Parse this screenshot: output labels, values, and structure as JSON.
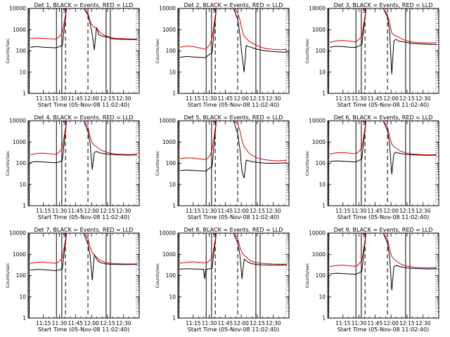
{
  "shared": {
    "type": "line",
    "ylabel": "Counts/sec",
    "xlabel": "Start Time (05-Nov-08 11:02:40)",
    "x_ticks": [
      "11:15",
      "11:30",
      "11:45",
      "12:00",
      "12:15",
      "12:30"
    ],
    "x_tick_minutes": [
      12.33,
      27.33,
      42.33,
      57.33,
      72.33,
      87.33
    ],
    "xlim_minutes": [
      -2,
      102
    ],
    "y_ticks": [
      "1",
      "10",
      "100",
      "1000",
      "10000"
    ],
    "y_tick_values": [
      1,
      10,
      100,
      1000,
      10000
    ],
    "ylim": [
      1,
      10000
    ],
    "y_scale": "log",
    "colors": {
      "events": "#000000",
      "lld": "#dd0000",
      "axis": "#000000"
    },
    "series_names": [
      "BLACK = Events",
      "RED = LLD"
    ],
    "solid_markers_minutes": [
      -1,
      24.5,
      29.5,
      71,
      75
    ],
    "dashed_markers_minutes": [
      33,
      54
    ],
    "annotation_letter": "S",
    "annotation_letter_minute": 30.5
  },
  "chart_data": [
    {
      "type": "line",
      "title": "Det 1, BLACK = Events, RED = LLD",
      "series": [
        {
          "name": "BLACK = Events",
          "x": [
            0,
            6,
            12,
            18,
            24,
            26,
            28,
            30,
            34,
            40,
            46,
            50,
            54,
            56,
            58,
            60,
            62,
            64,
            66,
            70,
            72,
            76,
            80,
            86,
            92,
            100
          ],
          "y": [
            150,
            160,
            150,
            145,
            140,
            150,
            165,
            175,
            10000,
            10000,
            10000,
            10000,
            5000,
            2000,
            600,
            110,
            1300,
            600,
            520,
            460,
            450,
            380,
            360,
            350,
            345,
            340
          ]
        },
        {
          "name": "RED = LLD",
          "x": [
            0,
            6,
            12,
            18,
            24,
            26,
            28,
            30,
            34,
            40,
            46,
            50,
            54,
            56,
            58,
            60,
            62,
            64,
            66,
            70,
            72,
            76,
            80,
            86,
            92,
            100
          ],
          "y": [
            380,
            400,
            390,
            370,
            360,
            420,
            520,
            700,
            10000,
            10000,
            10000,
            10000,
            6000,
            2500,
            1600,
            1300,
            1200,
            900,
            700,
            520,
            500,
            420,
            390,
            380,
            370,
            360
          ]
        }
      ]
    },
    {
      "type": "line",
      "title": "Det 2, BLACK = Events, RED = LLD",
      "series": [
        {
          "name": "BLACK = Events",
          "x": [
            0,
            6,
            12,
            18,
            24,
            26,
            28,
            30,
            34,
            40,
            46,
            50,
            54,
            56,
            58,
            60,
            62,
            64,
            66,
            70,
            72,
            76,
            80,
            86,
            92,
            100
          ],
          "y": [
            50,
            55,
            52,
            50,
            48,
            60,
            70,
            80,
            10000,
            10000,
            10000,
            10000,
            3000,
            600,
            60,
            10,
            180,
            160,
            150,
            130,
            120,
            110,
            100,
            95,
            90,
            88
          ]
        },
        {
          "name": "RED = LLD",
          "x": [
            0,
            6,
            12,
            18,
            24,
            26,
            28,
            30,
            34,
            40,
            46,
            50,
            54,
            56,
            58,
            60,
            62,
            64,
            66,
            70,
            72,
            76,
            80,
            86,
            92,
            100
          ],
          "y": [
            150,
            170,
            160,
            140,
            120,
            150,
            200,
            400,
            10000,
            10000,
            10000,
            10000,
            6000,
            3000,
            1000,
            500,
            400,
            300,
            260,
            200,
            180,
            150,
            130,
            120,
            115,
            120
          ]
        }
      ]
    },
    {
      "type": "line",
      "title": "Det 3, BLACK = Events, RED = LLD",
      "series": [
        {
          "name": "BLACK = Events",
          "x": [
            0,
            6,
            12,
            18,
            24,
            26,
            28,
            30,
            34,
            40,
            46,
            50,
            54,
            56,
            58,
            60,
            62,
            64,
            66,
            70,
            72,
            76,
            80,
            86,
            92,
            100
          ],
          "y": [
            150,
            165,
            160,
            150,
            145,
            160,
            180,
            200,
            10000,
            10000,
            10000,
            10000,
            4000,
            800,
            8,
            300,
            350,
            300,
            280,
            260,
            250,
            230,
            220,
            210,
            205,
            200
          ]
        },
        {
          "name": "RED = LLD",
          "x": [
            0,
            6,
            12,
            18,
            24,
            26,
            28,
            30,
            34,
            40,
            46,
            50,
            54,
            56,
            58,
            60,
            62,
            64,
            66,
            70,
            72,
            76,
            80,
            86,
            92,
            100
          ],
          "y": [
            250,
            300,
            310,
            290,
            270,
            300,
            380,
            500,
            10000,
            10000,
            10000,
            10000,
            5000,
            2000,
            700,
            550,
            500,
            450,
            400,
            320,
            300,
            270,
            250,
            240,
            235,
            240
          ]
        }
      ]
    },
    {
      "type": "line",
      "title": "Det 4, BLACK = Events, RED = LLD",
      "series": [
        {
          "name": "BLACK = Events",
          "x": [
            0,
            6,
            12,
            18,
            24,
            26,
            28,
            30,
            34,
            40,
            46,
            50,
            54,
            56,
            58,
            60,
            62,
            64,
            66,
            70,
            72,
            76,
            80,
            86,
            92,
            100
          ],
          "y": [
            110,
            120,
            115,
            110,
            105,
            110,
            120,
            130,
            10000,
            10000,
            10000,
            10000,
            3000,
            900,
            50,
            320,
            360,
            320,
            300,
            280,
            270,
            260,
            250,
            245,
            240,
            250
          ]
        },
        {
          "name": "RED = LLD",
          "x": [
            0,
            6,
            12,
            18,
            24,
            26,
            28,
            30,
            34,
            40,
            46,
            50,
            54,
            56,
            58,
            60,
            62,
            64,
            66,
            70,
            72,
            76,
            80,
            86,
            92,
            100
          ],
          "y": [
            250,
            290,
            300,
            280,
            260,
            300,
            380,
            500,
            10000,
            10000,
            10000,
            10000,
            5000,
            1800,
            900,
            700,
            600,
            500,
            420,
            350,
            320,
            290,
            270,
            260,
            255,
            260
          ]
        }
      ]
    },
    {
      "type": "line",
      "title": "Det 5, BLACK = Events, RED = LLD",
      "series": [
        {
          "name": "BLACK = Events",
          "x": [
            0,
            6,
            12,
            18,
            24,
            26,
            28,
            30,
            34,
            40,
            46,
            50,
            54,
            56,
            58,
            60,
            62,
            64,
            66,
            70,
            72,
            76,
            80,
            86,
            92,
            100
          ],
          "y": [
            45,
            48,
            46,
            44,
            42,
            50,
            60,
            70,
            10000,
            10000,
            10000,
            10000,
            2500,
            500,
            40,
            20,
            140,
            130,
            125,
            115,
            110,
            105,
            100,
            100,
            100,
            105
          ]
        },
        {
          "name": "RED = LLD",
          "x": [
            0,
            6,
            12,
            18,
            24,
            26,
            28,
            30,
            34,
            40,
            46,
            50,
            54,
            56,
            58,
            60,
            62,
            64,
            66,
            70,
            72,
            76,
            80,
            86,
            92,
            100
          ],
          "y": [
            160,
            180,
            175,
            160,
            150,
            170,
            230,
            420,
            10000,
            10000,
            10000,
            10000,
            7000,
            3500,
            1200,
            600,
            450,
            320,
            260,
            200,
            180,
            160,
            145,
            135,
            130,
            140
          ]
        }
      ]
    },
    {
      "type": "line",
      "title": "Det 6, BLACK = Events, RED = LLD",
      "series": [
        {
          "name": "BLACK = Events",
          "x": [
            0,
            6,
            12,
            18,
            24,
            26,
            28,
            30,
            34,
            40,
            46,
            50,
            54,
            56,
            58,
            60,
            62,
            64,
            66,
            70,
            72,
            76,
            80,
            86,
            92,
            100
          ],
          "y": [
            120,
            130,
            125,
            120,
            115,
            125,
            140,
            160,
            10000,
            10000,
            10000,
            10000,
            3500,
            800,
            30,
            280,
            330,
            300,
            290,
            270,
            260,
            250,
            245,
            240,
            235,
            240
          ]
        },
        {
          "name": "RED = LLD",
          "x": [
            0,
            6,
            12,
            18,
            24,
            26,
            28,
            30,
            34,
            40,
            46,
            50,
            54,
            56,
            58,
            60,
            62,
            64,
            66,
            70,
            72,
            76,
            80,
            86,
            92,
            100
          ],
          "y": [
            270,
            310,
            320,
            300,
            280,
            310,
            400,
            520,
            10000,
            10000,
            10000,
            10000,
            5000,
            1800,
            800,
            600,
            520,
            440,
            380,
            320,
            300,
            280,
            265,
            255,
            250,
            255
          ]
        }
      ]
    },
    {
      "type": "line",
      "title": "Det 7, BLACK = Events, RED = LLD",
      "series": [
        {
          "name": "BLACK = Events",
          "x": [
            0,
            6,
            12,
            18,
            24,
            26,
            28,
            30,
            34,
            40,
            46,
            50,
            54,
            56,
            58,
            60,
            62,
            64,
            66,
            70,
            72,
            76,
            80,
            86,
            92,
            100
          ],
          "y": [
            180,
            195,
            190,
            180,
            170,
            180,
            190,
            200,
            10000,
            10000,
            10000,
            10000,
            3000,
            900,
            60,
            1000,
            600,
            450,
            400,
            360,
            350,
            340,
            335,
            330,
            330,
            335
          ]
        },
        {
          "name": "RED = LLD",
          "x": [
            0,
            6,
            12,
            18,
            24,
            26,
            28,
            30,
            34,
            40,
            46,
            50,
            54,
            56,
            58,
            60,
            62,
            64,
            66,
            70,
            72,
            76,
            80,
            86,
            92,
            100
          ],
          "y": [
            380,
            420,
            430,
            400,
            380,
            420,
            520,
            650,
            10000,
            10000,
            10000,
            10000,
            5500,
            2200,
            1200,
            900,
            750,
            600,
            500,
            420,
            400,
            380,
            365,
            355,
            350,
            350
          ]
        }
      ]
    },
    {
      "type": "line",
      "title": "Det 8, BLACK = Events, RED = LLD",
      "series": [
        {
          "name": "BLACK = Events",
          "x": [
            0,
            6,
            12,
            18,
            22,
            23,
            24,
            26,
            28,
            30,
            34,
            40,
            46,
            50,
            54,
            56,
            58,
            60,
            62,
            64,
            66,
            70,
            72,
            76,
            80,
            86,
            92,
            100
          ],
          "y": [
            200,
            210,
            205,
            200,
            195,
            70,
            190,
            200,
            210,
            220,
            10000,
            10000,
            10000,
            10000,
            3500,
            1000,
            70,
            600,
            500,
            420,
            380,
            340,
            330,
            320,
            315,
            310,
            310,
            315
          ]
        },
        {
          "name": "RED = LLD",
          "x": [
            0,
            6,
            12,
            18,
            22,
            23,
            24,
            26,
            28,
            30,
            34,
            40,
            46,
            50,
            54,
            56,
            58,
            60,
            62,
            64,
            66,
            70,
            72,
            76,
            80,
            86,
            92,
            100
          ],
          "y": [
            380,
            420,
            440,
            420,
            400,
            400,
            400,
            430,
            520,
            650,
            10000,
            10000,
            10000,
            10000,
            5500,
            2200,
            1200,
            900,
            750,
            600,
            500,
            420,
            400,
            380,
            365,
            350,
            345,
            345
          ]
        }
      ]
    },
    {
      "type": "line",
      "title": "Det 9, BLACK = Events, RED = LLD",
      "series": [
        {
          "name": "BLACK = Events",
          "x": [
            0,
            6,
            12,
            18,
            24,
            26,
            28,
            30,
            34,
            40,
            46,
            50,
            54,
            56,
            58,
            60,
            62,
            64,
            66,
            70,
            72,
            76,
            80,
            86,
            92,
            100
          ],
          "y": [
            120,
            130,
            125,
            120,
            115,
            125,
            140,
            160,
            10000,
            10000,
            10000,
            10000,
            3500,
            800,
            20,
            260,
            300,
            280,
            260,
            240,
            230,
            220,
            215,
            210,
            205,
            210
          ]
        },
        {
          "name": "RED = LLD",
          "x": [
            0,
            6,
            12,
            18,
            24,
            26,
            28,
            30,
            34,
            40,
            46,
            50,
            54,
            56,
            58,
            60,
            62,
            64,
            66,
            70,
            72,
            76,
            80,
            86,
            92,
            100
          ],
          "y": [
            260,
            300,
            310,
            290,
            270,
            300,
            390,
            500,
            10000,
            10000,
            10000,
            10000,
            5000,
            1800,
            800,
            600,
            500,
            420,
            360,
            300,
            280,
            260,
            245,
            235,
            230,
            235
          ]
        }
      ]
    }
  ]
}
